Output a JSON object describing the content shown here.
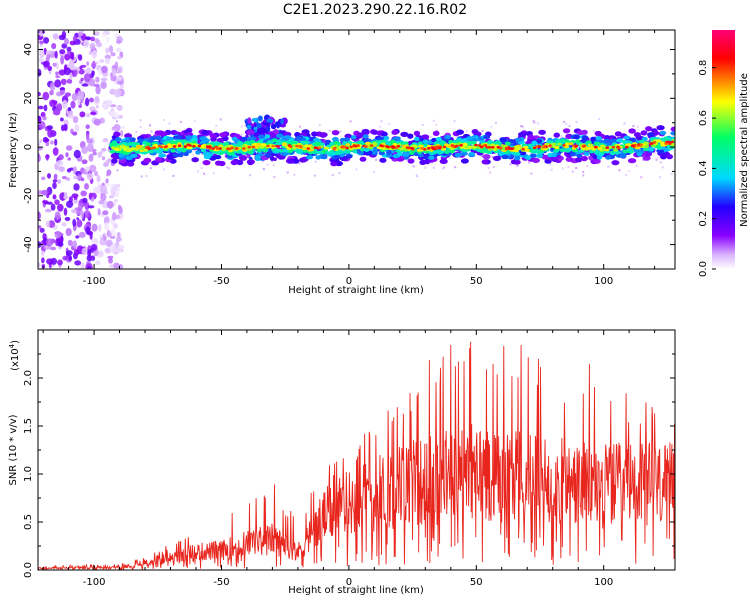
{
  "figure": {
    "title": "C2E1.2023.290.22.16.R02"
  },
  "colors": {
    "snr_line": "#e8261e",
    "axis": "#000000",
    "colormap": [
      "#ffffff",
      "#d9b3ff",
      "#8a00ff",
      "#2200ff",
      "#00d9ff",
      "#00ff66",
      "#ffff00",
      "#ff0000",
      "#ff0077"
    ]
  },
  "chart_data": [
    {
      "type": "heatmap",
      "name": "spectrogram",
      "xlabel": "Height of straight line (km)",
      "ylabel": "Frequency (Hz)",
      "xlim": [
        -122,
        128
      ],
      "ylim": [
        -50,
        48
      ],
      "x_ticks": [
        "-100",
        "-50",
        "0",
        "50",
        "100"
      ],
      "x_tick_values": [
        -100,
        -50,
        0,
        50,
        100
      ],
      "y_ticks": [
        "-40",
        "-20",
        "0",
        "20",
        "40"
      ],
      "y_tick_values": [
        -40,
        -20,
        0,
        20,
        40
      ],
      "colorbar": {
        "label": "Normalized spectral amplitude",
        "range": [
          0,
          0.95
        ],
        "ticks": [
          "0.0",
          "0.2",
          "0.4",
          "0.6",
          "0.8"
        ],
        "tick_values": [
          0.0,
          0.2,
          0.4,
          0.6,
          0.8
        ]
      },
      "regions": [
        {
          "description": "broadband noise",
          "x_range": [
            -122,
            -93
          ],
          "freq_range": [
            -50,
            48
          ],
          "amplitude": 0.15
        },
        {
          "description": "narrow band near 0 Hz",
          "x_range": [
            -93,
            128
          ],
          "freq_center": 0,
          "freq_halfwidth": 4,
          "peak_amplitude": 0.85
        },
        {
          "description": "disturbance",
          "x_range": [
            -40,
            -25
          ],
          "freq_range": [
            -5,
            12
          ],
          "amplitude": 0.3
        }
      ]
    },
    {
      "type": "line",
      "name": "snr",
      "xlabel": "Height of straight line (km)",
      "ylabel": "SNR (10 * v/v)",
      "y_scale_label": "(x10",
      "y_scale_exp": "4",
      "y_scale_close": ")",
      "xlim": [
        -122,
        128
      ],
      "ylim": [
        0,
        2.5
      ],
      "x_ticks": [
        "-100",
        "-50",
        "0",
        "50",
        "100"
      ],
      "x_tick_values": [
        -100,
        -50,
        0,
        50,
        100
      ],
      "y_ticks": [
        "0.0",
        "0.5",
        "1.0",
        "1.5",
        "2.0"
      ],
      "y_tick_values": [
        0.0,
        0.5,
        1.0,
        1.5,
        2.0
      ],
      "envelope": {
        "x": [
          -122,
          -90,
          -80,
          -60,
          -50,
          -40,
          -30,
          -20,
          -10,
          0,
          10,
          20,
          30,
          40,
          50,
          60,
          70,
          80,
          90,
          100,
          110,
          120,
          128
        ],
        "mean": [
          0.02,
          0.03,
          0.08,
          0.2,
          0.22,
          0.3,
          0.35,
          0.2,
          0.6,
          0.75,
          0.85,
          0.95,
          1.0,
          1.05,
          1.1,
          1.1,
          1.05,
          1.0,
          0.95,
          0.95,
          0.95,
          0.95,
          0.95
        ],
        "peak": [
          0.04,
          0.06,
          0.15,
          0.4,
          0.55,
          0.9,
          1.0,
          0.5,
          1.1,
          1.3,
          1.6,
          1.9,
          2.2,
          2.4,
          2.45,
          2.5,
          2.3,
          2.1,
          2.2,
          2.1,
          1.9,
          1.8,
          1.7
        ]
      }
    }
  ]
}
